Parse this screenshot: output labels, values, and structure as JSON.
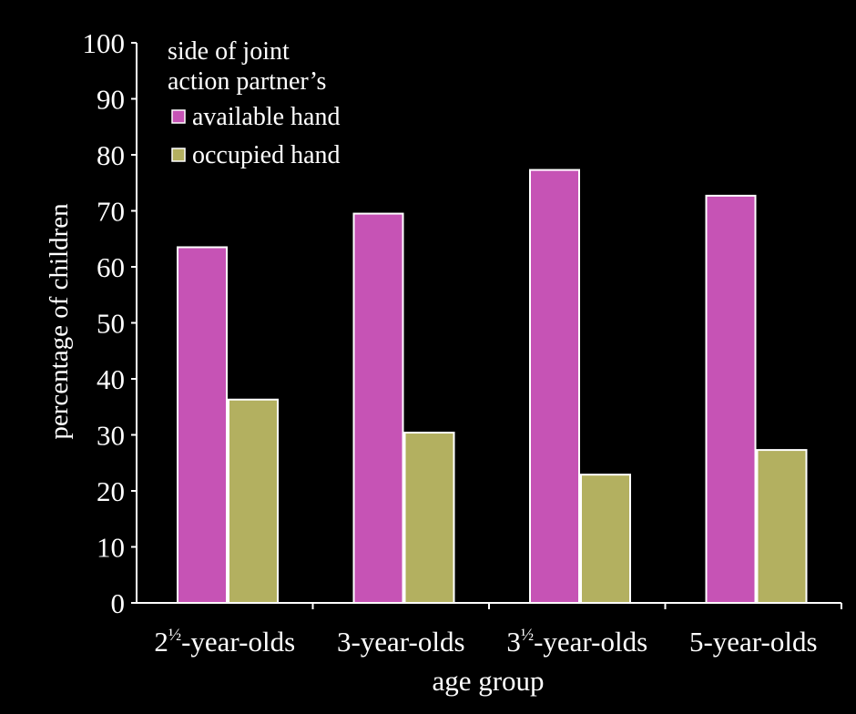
{
  "chart_data": {
    "type": "bar",
    "categories": [
      {
        "base": "2",
        "sup": "½",
        "rest": "-year-olds"
      },
      {
        "base": "3-year-olds",
        "sup": "",
        "rest": ""
      },
      {
        "base": "3",
        "sup": "½",
        "rest": "-year-olds"
      },
      {
        "base": "5-year-olds",
        "sup": "",
        "rest": ""
      }
    ],
    "series": [
      {
        "name": "available hand",
        "values": [
          63.5,
          69.5,
          77.3,
          72.7
        ],
        "color": "#c653b5"
      },
      {
        "name": "occupied hand",
        "values": [
          36.3,
          30.4,
          22.9,
          27.3
        ],
        "color": "#b3b060"
      }
    ],
    "xlabel": "age group",
    "ylabel": "percentage of children",
    "ylim": [
      0,
      100
    ],
    "yticks": [
      0,
      10,
      20,
      30,
      40,
      50,
      60,
      70,
      80,
      90,
      100
    ],
    "legend": {
      "title_line1": "side of joint",
      "title_line2": "action partner’s",
      "placement": "top-left"
    },
    "grid": false,
    "background": "#000000",
    "axis_color": "#ffffff",
    "bar_outline": "#ffffff"
  }
}
